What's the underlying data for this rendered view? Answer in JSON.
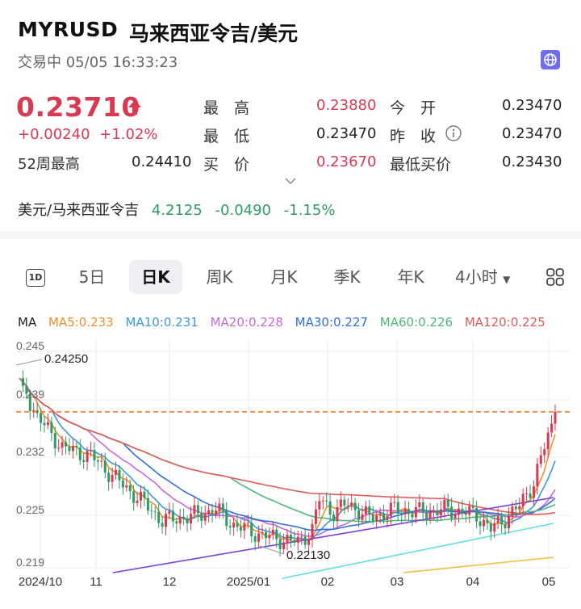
{
  "header": {
    "code": "MYRUSD",
    "name": "马来西亚令吉/美元",
    "status": "交易中 05/05 16:33:23",
    "globe_icon": "globe-icon"
  },
  "quote": {
    "price": "0.23710",
    "change": "+0.00240",
    "change_pct": "+1.02%",
    "week52_label": "52周最高",
    "week52_value": "0.24410",
    "high_label": "最　高",
    "high_value": "0.23880",
    "low_label": "最　低",
    "low_value": "0.23470",
    "bid_label": "买　价",
    "bid_value": "0.23670",
    "open_label": "今　开",
    "open_value": "0.23470",
    "prev_close_label": "昨　收",
    "prev_close_value": "0.23470",
    "min_bid_label": "最低买价",
    "min_bid_value": "0.23430",
    "up_color": "#d93a52",
    "down_color": "#2f9a62"
  },
  "reference": {
    "label": "美元/马来西亚令吉",
    "value": "4.2125",
    "change": "-0.0490",
    "change_pct": "-1.15%"
  },
  "tabs": {
    "t1d": "1D",
    "t5d": "5日",
    "tday": "日K",
    "tweek": "周K",
    "tmonth": "月K",
    "tquarter": "季K",
    "tyear": "年K",
    "t4h": "4小时",
    "active": "日K"
  },
  "ma_legend": {
    "label": "MA",
    "ma5": "MA5:0.233",
    "ma10": "MA10:0.231",
    "ma20": "MA20:0.228",
    "ma30": "MA30:0.227",
    "ma60": "MA60:0.226",
    "ma120": "MA120:0.225",
    "colors": {
      "ma5": "#f0902a",
      "ma10": "#3a9ad9",
      "ma20": "#c868d8",
      "ma30": "#2f6fd6",
      "ma60": "#4cb87a",
      "ma120": "#e05a5a"
    }
  },
  "chart_data": {
    "type": "candlestick",
    "y_ticks": [
      "0.245",
      "0.239",
      "0.232",
      "0.225",
      "0.219"
    ],
    "x_ticks": [
      "2024/10",
      "11",
      "12",
      "2025/01",
      "02",
      "03",
      "04",
      "05"
    ],
    "annotation_high": "0.24250",
    "annotation_low": "0.22130",
    "ylim": [
      0.2185,
      0.2455
    ],
    "current_price_line": 0.2371
  }
}
